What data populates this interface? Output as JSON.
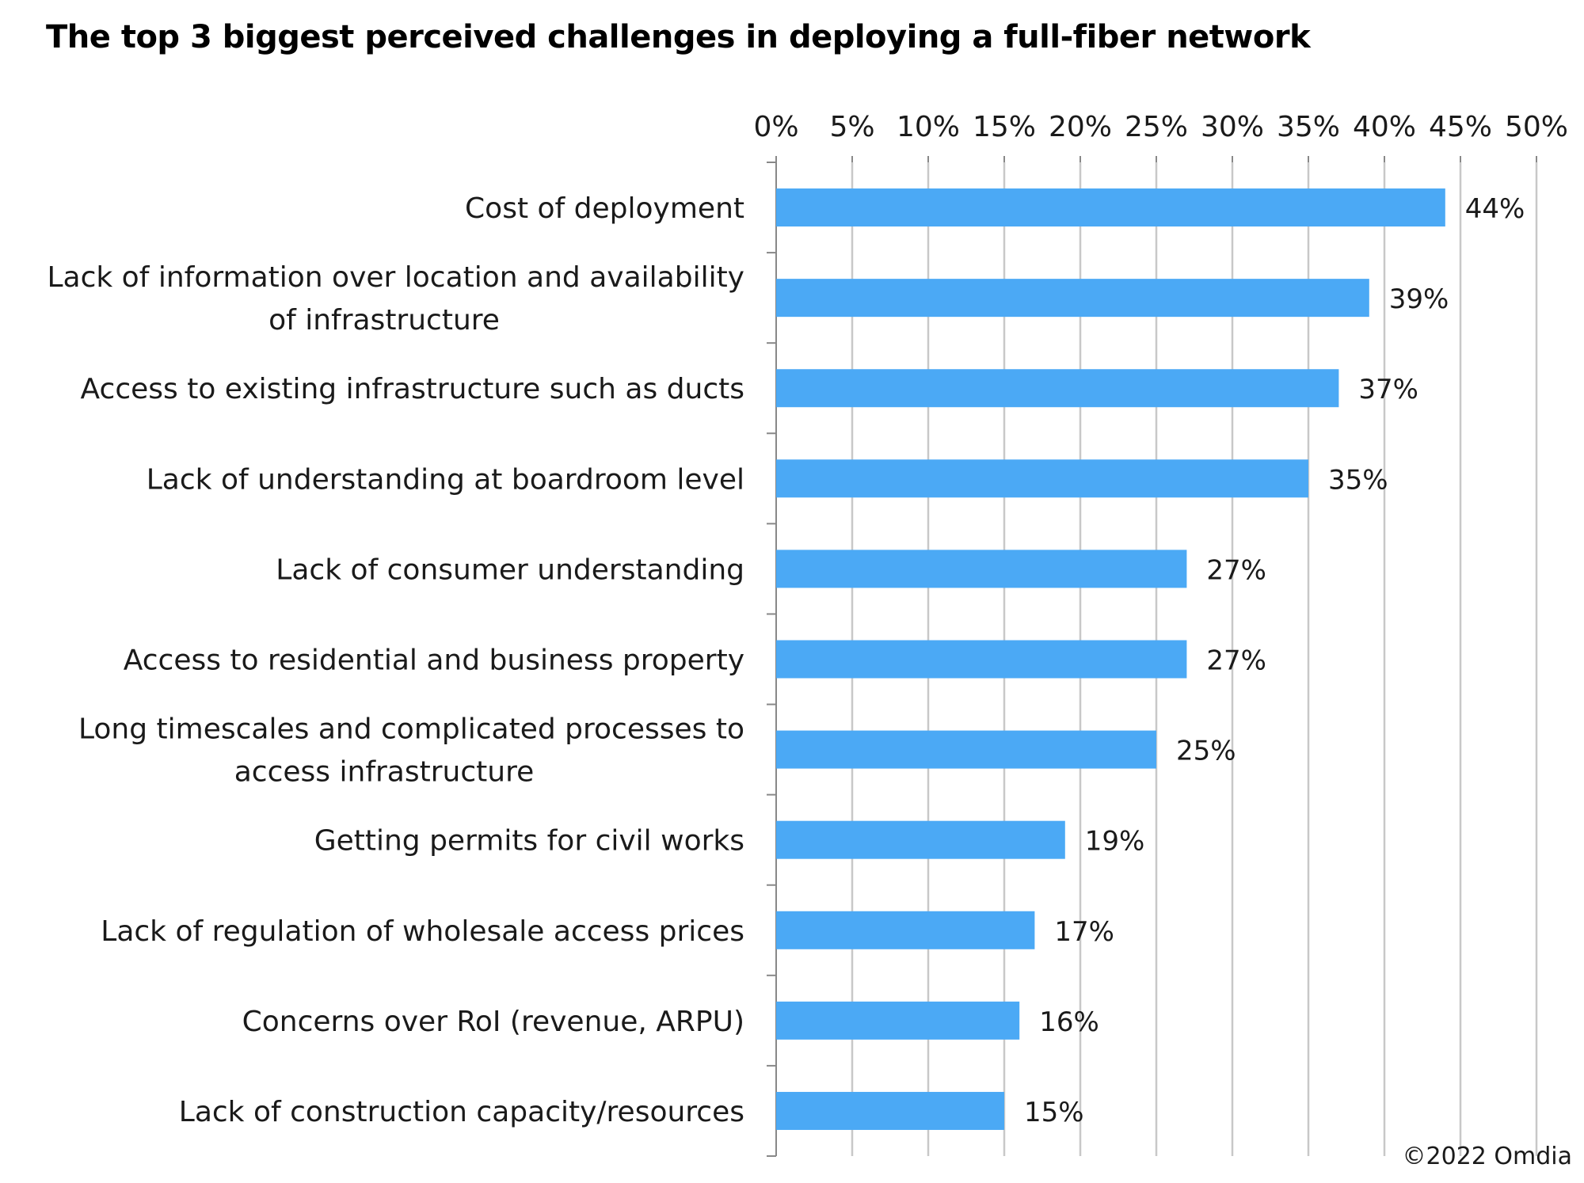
{
  "chart_data": {
    "type": "bar",
    "orientation": "horizontal",
    "title": "The top 3 biggest perceived challenges in deploying a full-fiber network",
    "xlabel": "",
    "ylabel": "",
    "xlim": [
      0,
      50
    ],
    "x_ticks": [
      "0%",
      "5%",
      "10%",
      "15%",
      "20%",
      "25%",
      "30%",
      "35%",
      "40%",
      "45%",
      "50%"
    ],
    "x_axis_position": "top",
    "grid": true,
    "bar_color": "#4BA9F5",
    "categories": [
      "Cost of deployment",
      "Lack of information over location and availability of infrastructure",
      "Access to existing infrastructure such as ducts",
      "Lack of understanding at boardroom level",
      "Lack of consumer understanding",
      "Access to residential and business property",
      "Long timescales and complicated processes to access infrastructure",
      "Getting permits for civil works",
      "Lack of regulation of wholesale access prices",
      "Concerns over RoI (revenue, ARPU)",
      "Lack of construction capacity/resources"
    ],
    "category_lines": [
      [
        "Cost of deployment"
      ],
      [
        "Lack of information over location and availability",
        "of infrastructure"
      ],
      [
        "Access to existing infrastructure such as ducts"
      ],
      [
        "Lack of understanding at boardroom level"
      ],
      [
        "Lack of consumer understanding"
      ],
      [
        "Access to residential and business property"
      ],
      [
        "Long timescales and complicated processes to",
        "access infrastructure"
      ],
      [
        "Getting permits for civil works"
      ],
      [
        "Lack of regulation of wholesale access prices"
      ],
      [
        "Concerns over RoI (revenue, ARPU)"
      ],
      [
        "Lack of construction capacity/resources"
      ]
    ],
    "values": [
      44,
      39,
      37,
      35,
      27,
      27,
      25,
      19,
      17,
      16,
      15
    ],
    "value_labels": [
      "44%",
      "39%",
      "37%",
      "35%",
      "27%",
      "27%",
      "25%",
      "19%",
      "17%",
      "16%",
      "15%"
    ]
  },
  "credit": "©2022 Omdia"
}
